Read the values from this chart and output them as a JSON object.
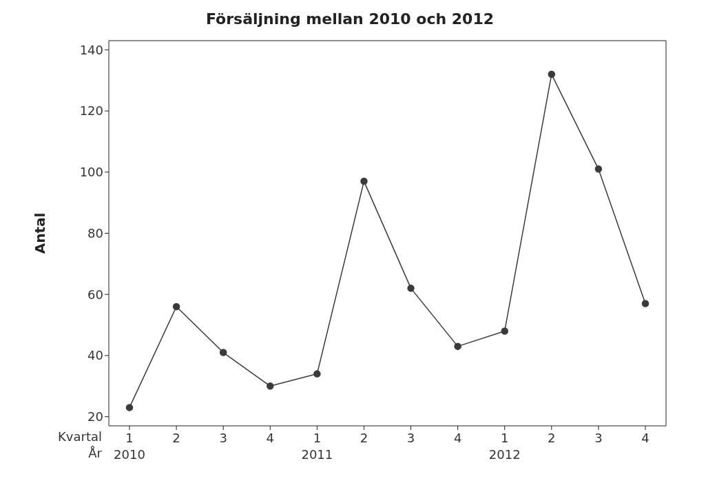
{
  "chart_data": {
    "type": "line",
    "title": "Försäljning mellan 2010 och 2012",
    "ylabel": "Antal",
    "categories": [
      "1\n2010",
      "2",
      "3",
      "4",
      "1\n2011",
      "2",
      "3",
      "4",
      "1\n2012",
      "2",
      "3",
      "4"
    ],
    "series": [
      {
        "color": "#3a3a3a",
        "values": [
          23,
          56,
          41,
          30,
          34,
          97,
          62,
          43,
          48,
          132,
          101,
          57
        ]
      }
    ],
    "ylim": [
      17,
      143
    ],
    "yticks": [
      20,
      40,
      60,
      80,
      100,
      120,
      140
    ],
    "annotations": [
      "Kvartal",
      "År"
    ],
    "grid": false,
    "marker": "circle",
    "line_style": "solid"
  }
}
